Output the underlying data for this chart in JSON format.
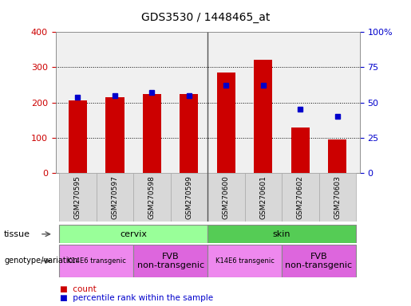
{
  "title": "GDS3530 / 1448465_at",
  "samples": [
    "GSM270595",
    "GSM270597",
    "GSM270598",
    "GSM270599",
    "GSM270600",
    "GSM270601",
    "GSM270602",
    "GSM270603"
  ],
  "counts": [
    205,
    215,
    225,
    225,
    285,
    322,
    130,
    95
  ],
  "percentile_ranks": [
    54,
    55,
    57,
    55,
    62,
    62,
    45,
    40
  ],
  "left_yaxis": {
    "min": 0,
    "max": 400,
    "ticks": [
      0,
      100,
      200,
      300,
      400
    ],
    "color": "#cc0000"
  },
  "right_yaxis": {
    "min": 0,
    "max": 100,
    "ticks": [
      0,
      25,
      50,
      75,
      100
    ],
    "color": "#0000cc"
  },
  "bar_color": "#cc0000",
  "dot_color": "#0000cc",
  "tissue_row": [
    {
      "label": "cervix",
      "span": [
        0,
        4
      ],
      "color": "#99ff99"
    },
    {
      "label": "skin",
      "span": [
        4,
        8
      ],
      "color": "#55cc55"
    }
  ],
  "genotype_row": [
    {
      "label": "K14E6 transgenic",
      "span": [
        0,
        2
      ],
      "color": "#ee88ee",
      "fontsize": 6
    },
    {
      "label": "FVB\nnon-transgenic",
      "span": [
        2,
        4
      ],
      "color": "#dd66dd",
      "fontsize": 8
    },
    {
      "label": "K14E6 transgenic",
      "span": [
        4,
        6
      ],
      "color": "#ee88ee",
      "fontsize": 6
    },
    {
      "label": "FVB\nnon-transgenic",
      "span": [
        6,
        8
      ],
      "color": "#dd66dd",
      "fontsize": 8
    }
  ],
  "sample_box_color": "#d8d8d8",
  "sample_box_edge": "#aaaaaa",
  "legend_count_color": "#cc0000",
  "legend_dot_color": "#0000cc",
  "grid_color": "#000000",
  "plot_bg_color": "#f0f0f0",
  "separator_color": "#555555"
}
